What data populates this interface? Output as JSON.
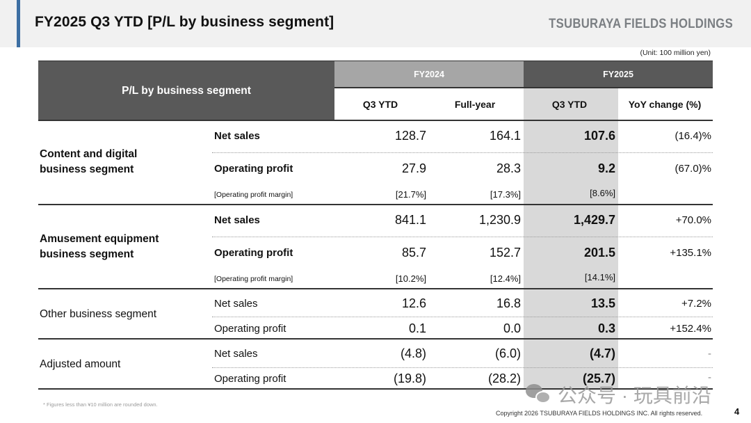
{
  "header": {
    "title": "FY2025 Q3 YTD [P/L by business segment]",
    "brand": "TSUBURAYA FIELDS HOLDINGS",
    "accent_color": "#3d6fa3"
  },
  "unit_note": "(Unit: 100 million yen)",
  "table": {
    "corner_label": "P/L by business segment",
    "groups": [
      {
        "label": "FY2024",
        "color": "#a6a6a6"
      },
      {
        "label": "FY2025",
        "color": "#595959"
      }
    ],
    "columns": [
      "Q3 YTD",
      "Full-year",
      "Q3 YTD",
      "YoY change (%)"
    ],
    "segments": [
      {
        "name": "Content and digital business segment",
        "name_line1": "Content and digital",
        "name_line2": "business segment",
        "rows": [
          {
            "label": "Net sales",
            "values": [
              "128.7",
              "164.1",
              "107.6",
              "(16.4)%"
            ]
          },
          {
            "label": "Operating profit",
            "values": [
              "27.9",
              "28.3",
              "9.2",
              "(67.0)%"
            ]
          },
          {
            "label": "[Operating profit margin]",
            "values": [
              "[21.7%]",
              "[17.3%]",
              "[8.6%]",
              ""
            ]
          }
        ]
      },
      {
        "name": "Amusement equipment business segment",
        "name_line1": "Amusement equipment",
        "name_line2": "business segment",
        "rows": [
          {
            "label": "Net sales",
            "values": [
              "841.1",
              "1,230.9",
              "1,429.7",
              "+70.0%"
            ]
          },
          {
            "label": "Operating profit",
            "values": [
              "85.7",
              "152.7",
              "201.5",
              "+135.1%"
            ]
          },
          {
            "label": "[Operating profit margin]",
            "values": [
              "[10.2%]",
              "[12.4%]",
              "[14.1%]",
              ""
            ]
          }
        ]
      },
      {
        "name": "Other business segment",
        "rows": [
          {
            "label": "Net sales",
            "values": [
              "12.6",
              "16.8",
              "13.5",
              "+7.2%"
            ]
          },
          {
            "label": "Operating profit",
            "values": [
              "0.1",
              "0.0",
              "0.3",
              "+152.4%"
            ]
          }
        ]
      },
      {
        "name": "Adjusted amount",
        "rows": [
          {
            "label": "Net sales",
            "values": [
              "(4.8)",
              "(6.0)",
              "(4.7)",
              "-"
            ]
          },
          {
            "label": "Operating profit",
            "values": [
              "(19.8)",
              "(28.2)",
              "(25.7)",
              "-"
            ]
          }
        ]
      }
    ]
  },
  "footer": {
    "note": "* Figures less than ¥10 million are rounded down.",
    "copyright": "Copyright 2026 TSUBURAYA FIELDS HOLDINGS INC. All rights reserved.",
    "page_number": "4",
    "watermark": "公众号 · 玩具前沿"
  }
}
